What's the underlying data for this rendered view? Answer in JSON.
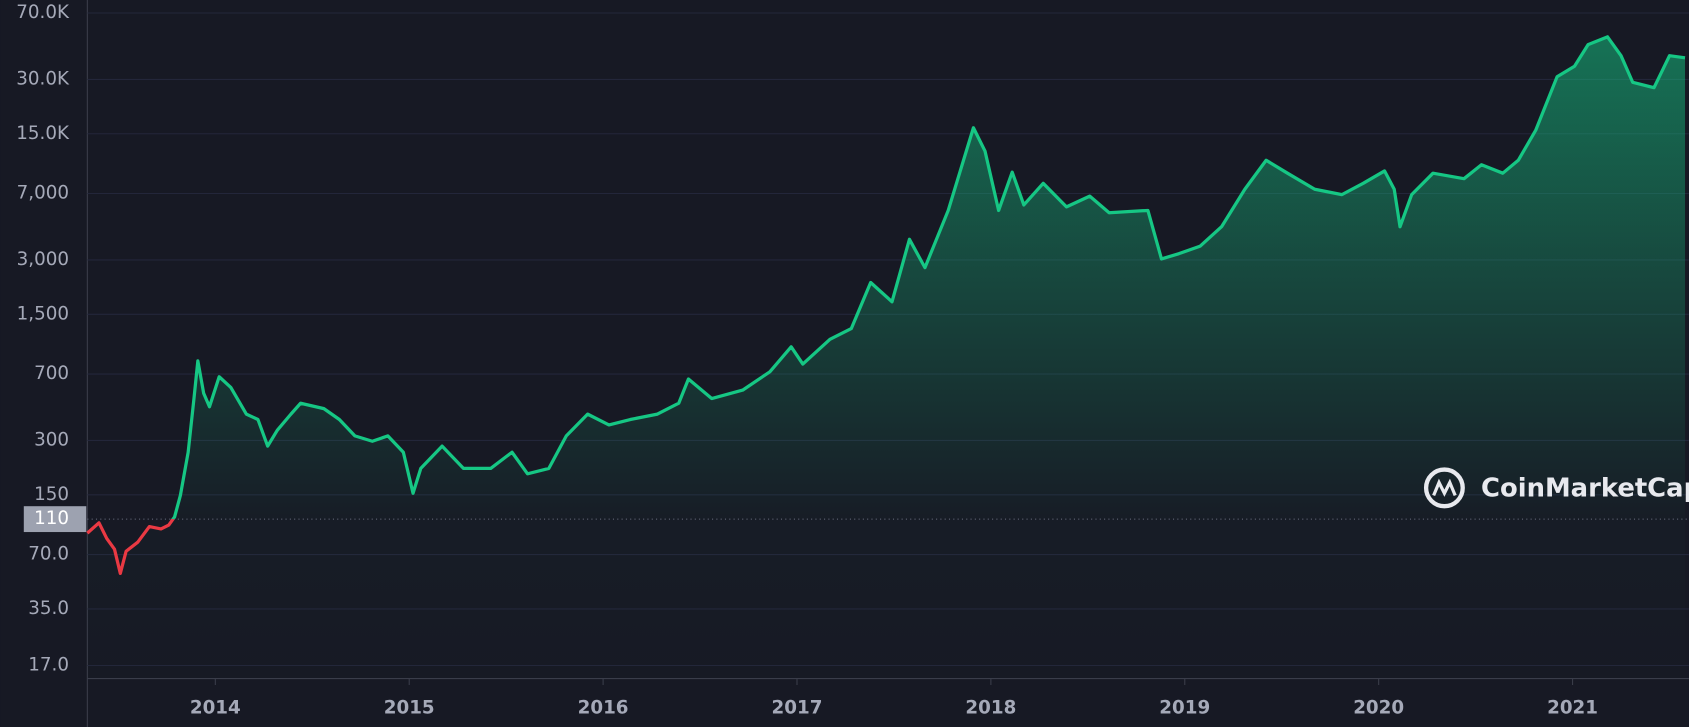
{
  "chart_data": {
    "type": "line",
    "log_scale": true,
    "grid": true,
    "color": "#16c784",
    "color_below": "#ea3943",
    "reference_line": 110,
    "watermark": "CoinMarketCap",
    "xlim": [
      2013.34,
      2021.6
    ],
    "xticks": [
      2014,
      2015,
      2016,
      2017,
      2018,
      2019,
      2020,
      2021
    ],
    "ylim": [
      14.4,
      82600
    ],
    "yticks": [
      {
        "value": 70000,
        "label": "70.0K"
      },
      {
        "value": 30000,
        "label": "30.0K"
      },
      {
        "value": 15000,
        "label": "15.0K"
      },
      {
        "value": 7000,
        "label": "7,000"
      },
      {
        "value": 3000,
        "label": "3,000"
      },
      {
        "value": 1500,
        "label": "1,500"
      },
      700,
      300,
      150,
      {
        "value": 70,
        "label": "70.0"
      },
      {
        "value": 35,
        "label": "35.0"
      },
      {
        "value": 17,
        "label": "17.0"
      }
    ],
    "x": [
      2013.34,
      2013.4,
      2013.44,
      2013.48,
      2013.51,
      2013.54,
      2013.6,
      2013.66,
      2013.72,
      2013.76,
      2013.79,
      2013.82,
      2013.86,
      2013.89,
      2013.91,
      2013.94,
      2013.97,
      2014.02,
      2014.08,
      2014.16,
      2014.22,
      2014.27,
      2014.32,
      2014.39,
      2014.44,
      2014.56,
      2014.64,
      2014.72,
      2014.81,
      2014.89,
      2014.97,
      2015.02,
      2015.06,
      2015.17,
      2015.28,
      2015.42,
      2015.53,
      2015.61,
      2015.72,
      2015.81,
      2015.92,
      2016.03,
      2016.14,
      2016.28,
      2016.39,
      2016.44,
      2016.56,
      2016.72,
      2016.86,
      2016.97,
      2017.03,
      2017.17,
      2017.28,
      2017.38,
      2017.49,
      2017.58,
      2017.66,
      2017.78,
      2017.91,
      2017.97,
      2018.04,
      2018.11,
      2018.17,
      2018.27,
      2018.39,
      2018.51,
      2018.61,
      2018.81,
      2018.88,
      2018.97,
      2019.08,
      2019.19,
      2019.31,
      2019.42,
      2019.53,
      2019.67,
      2019.81,
      2019.92,
      2020.03,
      2020.08,
      2020.11,
      2020.17,
      2020.28,
      2020.44,
      2020.53,
      2020.64,
      2020.72,
      2020.81,
      2020.92,
      2021.01,
      2021.08,
      2021.18,
      2021.25,
      2021.31,
      2021.42,
      2021.5,
      2021.58
    ],
    "values": [
      92,
      105,
      86,
      75,
      55,
      73,
      82,
      100,
      97,
      102,
      113,
      149,
      258,
      512,
      828,
      548,
      461,
      676,
      590,
      420,
      392,
      279,
      342,
      420,
      482,
      450,
      392,
      318,
      297,
      318,
      258,
      153,
      210,
      279,
      210,
      210,
      258,
      196,
      210,
      318,
      420,
      366,
      392,
      420,
      482,
      657,
      512,
      570,
      720,
      990,
      795,
      1090,
      1250,
      2250,
      1760,
      3900,
      2720,
      5640,
      16200,
      12000,
      5640,
      9200,
      6050,
      7970,
      5900,
      6770,
      5480,
      5640,
      3040,
      3250,
      3580,
      4580,
      7390,
      10700,
      9070,
      7390,
      6900,
      7970,
      9330,
      7390,
      4580,
      6900,
      9070,
      8460,
      10100,
      9070,
      10700,
      15700,
      31000,
      35500,
      46800,
      51600,
      40600,
      28900,
      27000,
      40600,
      39500
    ]
  }
}
